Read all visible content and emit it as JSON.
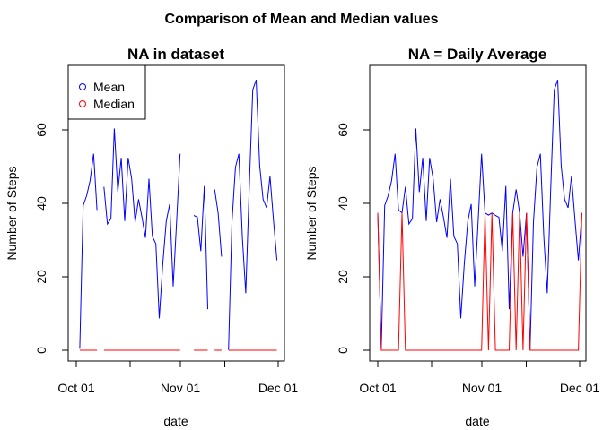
{
  "figure_title": "Comparison of Mean and Median values",
  "chart_data": [
    {
      "type": "line",
      "title": "NA in dataset",
      "xlabel": "date",
      "ylabel": "Number of Steps",
      "x_ticks": [
        "Oct 01",
        "Nov 01",
        "Dec 01"
      ],
      "y_ticks": [
        "0",
        "20",
        "40",
        "60"
      ],
      "ylim": [
        -3,
        76
      ],
      "legend": {
        "position": "top-left",
        "entries": [
          "Mean",
          "Median"
        ]
      },
      "series": [
        {
          "name": "Mean",
          "color": "#0000ff",
          "values": [
            null,
            0.4,
            39.4,
            42.1,
            46.2,
            53.5,
            38.2,
            null,
            44.5,
            34.4,
            35.8,
            60.4,
            43.1,
            52.4,
            35.2,
            52.4,
            46.7,
            34.9,
            41.1,
            36.1,
            30.6,
            46.7,
            31.0,
            29.0,
            8.7,
            23.5,
            35.1,
            39.8,
            17.4,
            34.9,
            53.5,
            null,
            36.8,
            null,
            36.7,
            36.2,
            27.0,
            44.7,
            11.2,
            null,
            43.8,
            37.4,
            25.5,
            null,
            0.1,
            34.8,
            49.8,
            53.5,
            30.7,
            15.5,
            44.4,
            70.9,
            73.6,
            50.3,
            41.1,
            38.8,
            47.4,
            35.4,
            24.5,
            null
          ]
        },
        {
          "name": "Median",
          "color": "#ff0000",
          "values": [
            null,
            0,
            0,
            0,
            0,
            0,
            0,
            null,
            0,
            0,
            0,
            0,
            0,
            0,
            0,
            0,
            0,
            0,
            0,
            0,
            0,
            0,
            0,
            0,
            0,
            0,
            0,
            0,
            0,
            0,
            0,
            null,
            0,
            null,
            0,
            0,
            0,
            0,
            0,
            null,
            0,
            0,
            0,
            null,
            0,
            0,
            0,
            0,
            0,
            0,
            0,
            0,
            0,
            0,
            0,
            0,
            0,
            0,
            0,
            null
          ]
        }
      ]
    },
    {
      "type": "line",
      "title": "NA = Daily Average",
      "xlabel": "date",
      "ylabel": "Number of Steps",
      "x_ticks": [
        "Oct 01",
        "Nov 01",
        "Dec 01"
      ],
      "y_ticks": [
        "0",
        "20",
        "40",
        "60"
      ],
      "ylim": [
        -3,
        76
      ],
      "series": [
        {
          "name": "Mean",
          "color": "#0000ff",
          "values": [
            37.4,
            0.4,
            39.4,
            42.1,
            46.2,
            53.5,
            38.2,
            37.4,
            44.5,
            34.4,
            35.8,
            60.4,
            43.1,
            52.4,
            35.2,
            52.4,
            46.7,
            34.9,
            41.1,
            36.1,
            30.6,
            46.7,
            31.0,
            29.0,
            8.7,
            23.5,
            35.1,
            39.8,
            17.4,
            34.9,
            53.5,
            37.4,
            36.8,
            37.4,
            36.7,
            36.2,
            27.0,
            44.7,
            11.2,
            37.4,
            43.8,
            37.4,
            25.5,
            37.4,
            0.1,
            34.8,
            49.8,
            53.5,
            30.7,
            15.5,
            44.4,
            70.9,
            73.6,
            50.3,
            41.1,
            38.8,
            47.4,
            35.4,
            24.5,
            37.4
          ]
        },
        {
          "name": "Median",
          "color": "#ff0000",
          "values": [
            37.4,
            0,
            0,
            0,
            0,
            0,
            0,
            37.4,
            0,
            0,
            0,
            0,
            0,
            0,
            0,
            0,
            0,
            0,
            0,
            0,
            0,
            0,
            0,
            0,
            0,
            0,
            0,
            0,
            0,
            0,
            0,
            37.4,
            0,
            37.4,
            0,
            0,
            0,
            0,
            0,
            37.4,
            0,
            37.4,
            0,
            37.4,
            0,
            0,
            0,
            0,
            0,
            0,
            0,
            0,
            0,
            0,
            0,
            0,
            0,
            0,
            0,
            37.4
          ]
        }
      ]
    }
  ]
}
